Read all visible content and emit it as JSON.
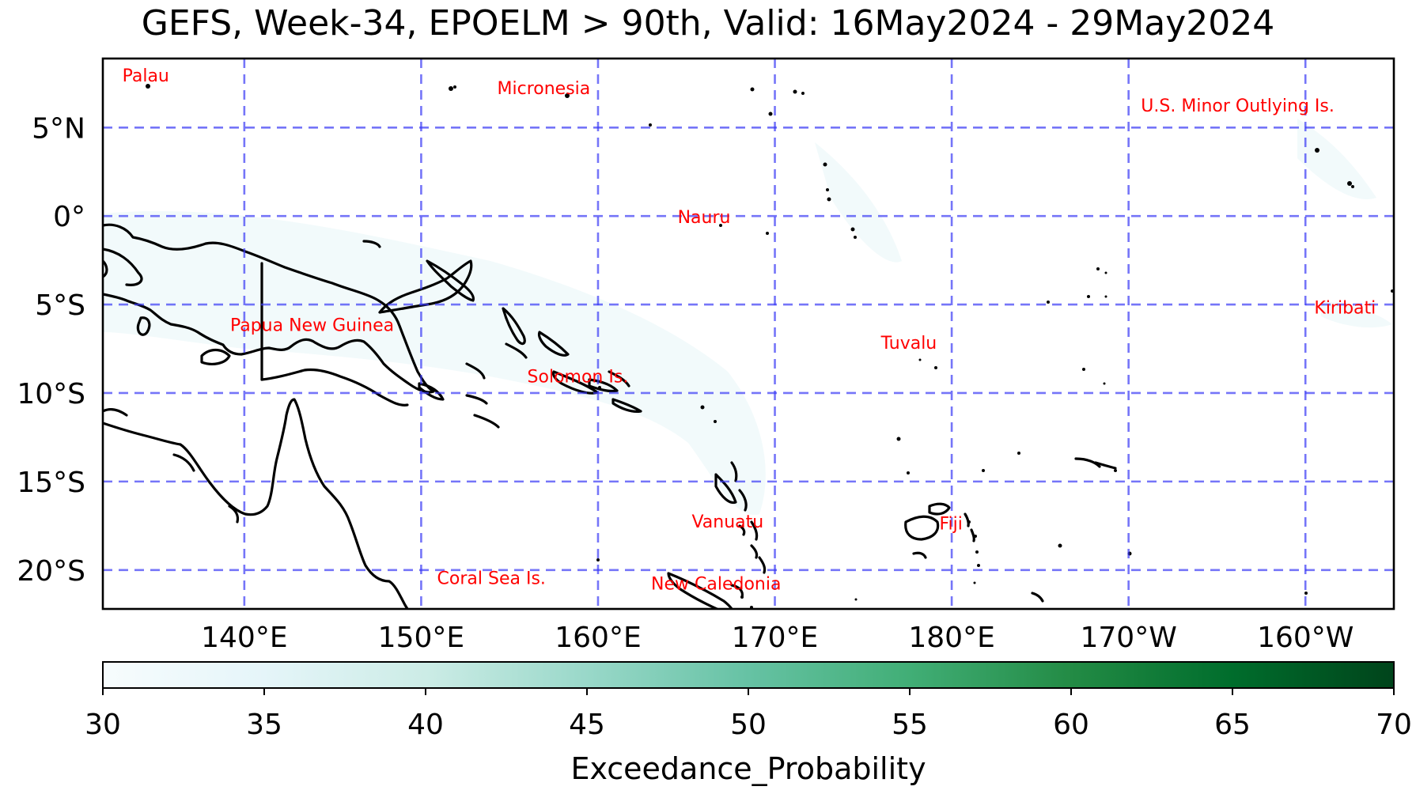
{
  "title": "GEFS, Week-34, EPOELM > 90th, Valid: 16May2024 - 29May2024",
  "map": {
    "lon_range": [
      132,
      205
    ],
    "lat_range": [
      -22.2,
      8.9
    ],
    "lat_ticks": [
      {
        "value": 5,
        "label": "5°N"
      },
      {
        "value": 0,
        "label": "0°"
      },
      {
        "value": -5,
        "label": "5°S"
      },
      {
        "value": -10,
        "label": "10°S"
      },
      {
        "value": -15,
        "label": "15°S"
      },
      {
        "value": -20,
        "label": "20°S"
      }
    ],
    "lon_ticks": [
      {
        "value": 140,
        "label": "140°E"
      },
      {
        "value": 150,
        "label": "150°E"
      },
      {
        "value": 160,
        "label": "160°E"
      },
      {
        "value": 170,
        "label": "170°E"
      },
      {
        "value": 180,
        "label": "180°E"
      },
      {
        "value": 190,
        "label": "170°W"
      },
      {
        "value": 200,
        "label": "160°W"
      }
    ],
    "places": [
      {
        "name": "Palau",
        "lon": 133.1,
        "lat": 7.6
      },
      {
        "name": "Micronesia",
        "lon": 154.3,
        "lat": 6.9
      },
      {
        "name": "U.S. Minor Outlying Is.",
        "lon": 190.7,
        "lat": 5.9
      },
      {
        "name": "Nauru",
        "lon": 164.5,
        "lat": -0.4
      },
      {
        "name": "Kiribati",
        "lon": 200.5,
        "lat": -5.5
      },
      {
        "name": "Papua New Guinea",
        "lon": 139.2,
        "lat": -6.5
      },
      {
        "name": "Tuvalu",
        "lon": 176.0,
        "lat": -7.5
      },
      {
        "name": "Solomon Is.",
        "lon": 156.0,
        "lat": -9.4
      },
      {
        "name": "Vanuatu",
        "lon": 165.3,
        "lat": -17.6
      },
      {
        "name": "Fiji",
        "lon": 179.3,
        "lat": -17.7
      },
      {
        "name": "Coral Sea Is.",
        "lon": 150.9,
        "lat": -20.8
      },
      {
        "name": "New Caledonia",
        "lon": 163.0,
        "lat": -21.1
      }
    ],
    "grid_color": "#3b3bf5",
    "label_color": "#ff0000"
  },
  "colorbar": {
    "label": "Exceedance_Probability",
    "min": 30,
    "max": 70,
    "ticks": [
      30,
      35,
      40,
      45,
      50,
      55,
      60,
      65,
      70
    ],
    "colormap": "BuGn",
    "colors": [
      "#f7fcfd",
      "#e5f5f9",
      "#ccece6",
      "#99d8c9",
      "#66c2a4",
      "#41ae76",
      "#238b45",
      "#006d2c",
      "#00441b"
    ]
  }
}
